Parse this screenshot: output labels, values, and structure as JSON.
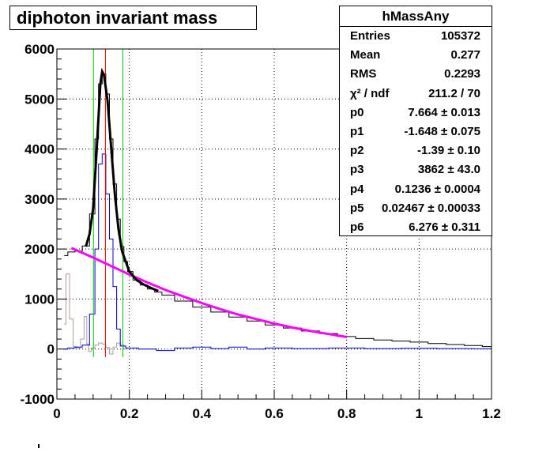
{
  "chart_data": {
    "type": "histogram",
    "title": "diphoton invariant mass",
    "xlim": [
      0,
      1.2
    ],
    "ylim": [
      -1000,
      6000
    ],
    "x_ticks": [
      "0",
      "0.2",
      "0.4",
      "0.6",
      "0.8",
      "1",
      "1.2"
    ],
    "x_tick_values": [
      0,
      0.2,
      0.4,
      0.6,
      0.8,
      1.0,
      1.2
    ],
    "y_ticks": [
      "-1000",
      "0",
      "1000",
      "2000",
      "3000",
      "4000",
      "5000",
      "6000"
    ],
    "y_tick_values": [
      -1000,
      0,
      1000,
      2000,
      3000,
      4000,
      5000,
      6000
    ],
    "grid": true,
    "vertical_lines": [
      {
        "x": 0.101,
        "color": "#00cc00"
      },
      {
        "x": 0.134,
        "color": "#ff0000"
      },
      {
        "x": 0.182,
        "color": "#00cc00"
      }
    ],
    "histogram_black_points": [
      [
        0.02,
        1870
      ],
      [
        0.04,
        1940
      ],
      [
        0.06,
        1960
      ],
      [
        0.08,
        2060
      ],
      [
        0.1,
        2700
      ],
      [
        0.11,
        4200
      ],
      [
        0.12,
        5300
      ],
      [
        0.13,
        5500
      ],
      [
        0.14,
        5100
      ],
      [
        0.15,
        4200
      ],
      [
        0.16,
        3300
      ],
      [
        0.17,
        2600
      ],
      [
        0.18,
        2050
      ],
      [
        0.19,
        1750
      ],
      [
        0.2,
        1550
      ],
      [
        0.22,
        1380
      ],
      [
        0.24,
        1280
      ],
      [
        0.26,
        1200
      ],
      [
        0.28,
        1140
      ],
      [
        0.3,
        1080
      ],
      [
        0.35,
        960
      ],
      [
        0.4,
        840
      ],
      [
        0.45,
        740
      ],
      [
        0.5,
        640
      ],
      [
        0.55,
        560
      ],
      [
        0.6,
        480
      ],
      [
        0.65,
        420
      ],
      [
        0.7,
        360
      ],
      [
        0.75,
        310
      ],
      [
        0.8,
        250
      ],
      [
        0.85,
        210
      ],
      [
        0.9,
        180
      ],
      [
        0.95,
        160
      ],
      [
        1.0,
        140
      ],
      [
        1.05,
        110
      ],
      [
        1.1,
        90
      ],
      [
        1.15,
        70
      ],
      [
        1.2,
        50
      ]
    ],
    "histogram_blue_points": [
      [
        0.02,
        0
      ],
      [
        0.04,
        20
      ],
      [
        0.06,
        40
      ],
      [
        0.08,
        80
      ],
      [
        0.1,
        700
      ],
      [
        0.11,
        2000
      ],
      [
        0.12,
        3700
      ],
      [
        0.13,
        3900
      ],
      [
        0.14,
        3100
      ],
      [
        0.15,
        2200
      ],
      [
        0.16,
        1250
      ],
      [
        0.17,
        400
      ],
      [
        0.18,
        60
      ],
      [
        0.2,
        20
      ],
      [
        0.25,
        0
      ],
      [
        0.3,
        -30
      ],
      [
        0.35,
        20
      ],
      [
        0.4,
        40
      ],
      [
        0.45,
        10
      ],
      [
        0.5,
        40
      ],
      [
        0.55,
        0
      ],
      [
        0.6,
        20
      ],
      [
        0.7,
        10
      ],
      [
        0.8,
        20
      ],
      [
        0.9,
        10
      ],
      [
        1.0,
        15
      ],
      [
        1.1,
        10
      ],
      [
        1.2,
        5
      ]
    ],
    "histogram_gray_points": [
      [
        0.02,
        500
      ],
      [
        0.03,
        1500
      ],
      [
        0.04,
        600
      ],
      [
        0.05,
        50
      ],
      [
        0.06,
        20
      ],
      [
        0.07,
        200
      ],
      [
        0.08,
        650
      ],
      [
        0.085,
        100
      ],
      [
        0.09,
        -50
      ],
      [
        0.1,
        20
      ],
      [
        0.11,
        80
      ],
      [
        0.12,
        120
      ],
      [
        0.13,
        100
      ],
      [
        0.14,
        30
      ],
      [
        0.15,
        -100
      ],
      [
        0.16,
        40
      ],
      [
        0.17,
        120
      ],
      [
        0.18,
        80
      ],
      [
        0.19,
        0
      ]
    ],
    "fit_total_points": [
      [
        0.08,
        2050
      ],
      [
        0.09,
        2300
      ],
      [
        0.1,
        2800
      ],
      [
        0.11,
        4000
      ],
      [
        0.12,
        5300
      ],
      [
        0.125,
        5550
      ],
      [
        0.13,
        5480
      ],
      [
        0.14,
        4950
      ],
      [
        0.15,
        4000
      ],
      [
        0.16,
        3100
      ],
      [
        0.17,
        2400
      ],
      [
        0.18,
        1950
      ],
      [
        0.2,
        1550
      ],
      [
        0.22,
        1380
      ],
      [
        0.24,
        1290
      ],
      [
        0.26,
        1220
      ],
      [
        0.28,
        1160
      ]
    ],
    "fit_background_points": [
      [
        0.04,
        2020
      ],
      [
        0.1,
        1830
      ],
      [
        0.15,
        1660
      ],
      [
        0.2,
        1490
      ],
      [
        0.25,
        1330
      ],
      [
        0.3,
        1180
      ],
      [
        0.35,
        1050
      ],
      [
        0.4,
        920
      ],
      [
        0.45,
        800
      ],
      [
        0.5,
        690
      ],
      [
        0.55,
        600
      ],
      [
        0.6,
        510
      ],
      [
        0.65,
        430
      ],
      [
        0.7,
        360
      ],
      [
        0.75,
        300
      ],
      [
        0.8,
        240
      ]
    ]
  },
  "stats": {
    "title": "hMassAny",
    "rows": [
      {
        "key": "Entries",
        "value": "105372"
      },
      {
        "key": "Mean",
        "value": "0.277"
      },
      {
        "key": "RMS",
        "value": "0.2293"
      },
      {
        "key": "χ² / ndf",
        "value": "211.2 / 70"
      },
      {
        "key": "p0",
        "value": "7.664 ± 0.013"
      },
      {
        "key": "p1",
        "value": "-1.648 ± 0.075"
      },
      {
        "key": "p2",
        "value": "-1.39 ± 0.10"
      },
      {
        "key": "p3",
        "value": "3862 ± 43.0"
      },
      {
        "key": "p4",
        "value": "0.1236 ± 0.0004"
      },
      {
        "key": "p5",
        "value": "0.02467 ± 0.00033"
      },
      {
        "key": "p6",
        "value": "6.276 ± 0.311"
      }
    ]
  },
  "colors": {
    "frame": "#000000",
    "grid": "#000000",
    "hist_black": "#000000",
    "hist_blue": "#0000cc",
    "hist_gray": "#a8a098",
    "fit_background": "#ff00ff",
    "green_line": "#00cc00",
    "red_line": "#ff0000"
  }
}
